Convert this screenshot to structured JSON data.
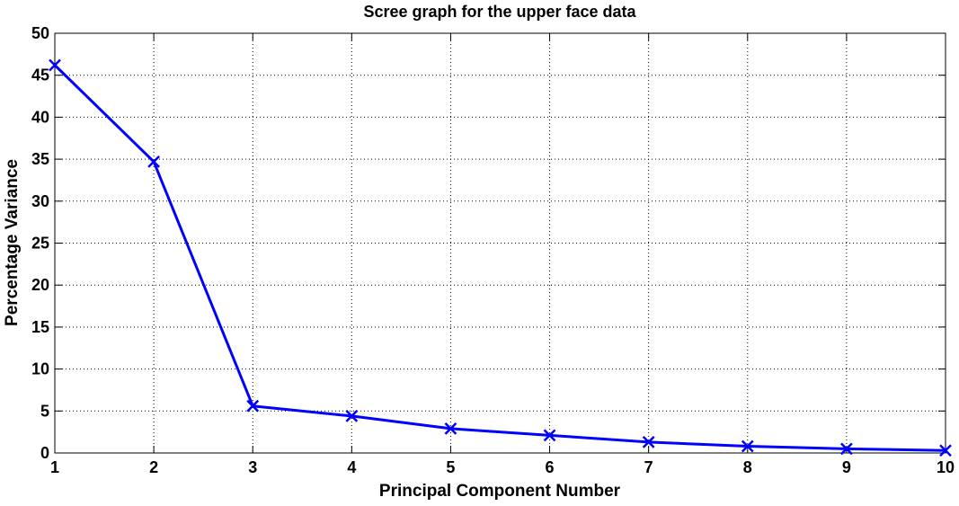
{
  "chart_data": {
    "type": "line",
    "title": "Scree graph for the upper face data",
    "xlabel": "Principal Component Number",
    "ylabel": "Percentage Variance",
    "xlim": [
      1,
      10
    ],
    "ylim": [
      0,
      50
    ],
    "x_ticks": [
      "1",
      "2",
      "3",
      "4",
      "5",
      "6",
      "7",
      "8",
      "9",
      "10"
    ],
    "y_ticks": [
      "0",
      "5",
      "10",
      "15",
      "20",
      "25",
      "30",
      "35",
      "40",
      "45",
      "50"
    ],
    "grid": true,
    "series": [
      {
        "x": [
          1,
          2,
          3,
          4,
          5,
          6,
          7,
          8,
          9,
          10
        ],
        "values": [
          46.2,
          34.7,
          5.6,
          4.4,
          2.9,
          2.1,
          1.3,
          0.8,
          0.5,
          0.3
        ],
        "color": "#0000ff",
        "marker": "x"
      }
    ]
  }
}
